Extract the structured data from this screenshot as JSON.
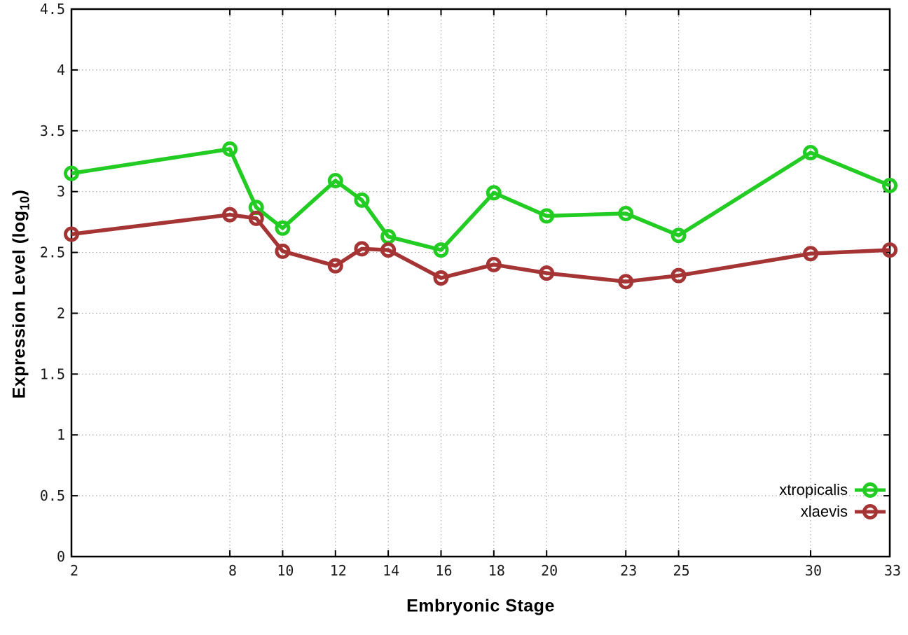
{
  "chart_data": {
    "type": "line",
    "title": "",
    "xlabel": "Embryonic Stage",
    "ylabel": "Expression Level (log10)",
    "ylabel_parts": {
      "prefix": "Expression Level (log",
      "sub": "10",
      "suffix": ")"
    },
    "x": [
      2,
      8,
      9,
      10,
      12,
      13,
      14,
      16,
      18,
      20,
      23,
      25,
      30,
      33
    ],
    "xlim": [
      2,
      33
    ],
    "ylim": [
      0,
      4.5
    ],
    "x_tick_values": [
      2,
      8,
      10,
      12,
      14,
      16,
      18,
      20,
      23,
      25,
      30,
      33
    ],
    "x_tick_labels": [
      "2",
      "8",
      "10",
      "12",
      "14",
      "16",
      "18",
      "20",
      "23",
      "25",
      "30",
      "33"
    ],
    "y_tick_values": [
      0,
      0.5,
      1,
      1.5,
      2,
      2.5,
      3,
      3.5,
      4,
      4.5
    ],
    "y_tick_labels": [
      "0",
      "0.5",
      "1",
      "1.5",
      "2",
      "2.5",
      "3",
      "3.5",
      "4",
      "4.5"
    ],
    "grid": true,
    "legend_position": "bottom-right",
    "series": [
      {
        "name": "xtropicalis",
        "color": "#22cc22",
        "values": [
          3.15,
          3.35,
          2.87,
          2.7,
          3.09,
          2.93,
          2.63,
          2.52,
          2.99,
          2.8,
          2.82,
          2.64,
          3.32,
          3.05
        ]
      },
      {
        "name": "xlaevis",
        "color": "#a53434",
        "values": [
          2.65,
          2.81,
          2.78,
          2.51,
          2.39,
          2.53,
          2.52,
          2.29,
          2.4,
          2.33,
          2.26,
          2.31,
          2.49,
          2.52
        ]
      }
    ],
    "styles": {
      "border_color": "#000000",
      "grid_color": "#a8a8a8",
      "tick_label_color": "#1a1a1a",
      "background": "#ffffff"
    }
  }
}
